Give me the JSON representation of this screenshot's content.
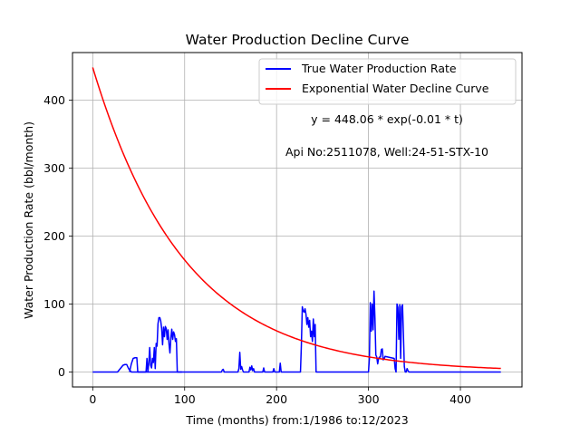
{
  "chart_data": {
    "type": "line",
    "title": "Water Production Decline Curve",
    "xlabel": "Time (months) from:1/1986 to:12/2023",
    "ylabel": "Water Production Rate (bbl/month)",
    "xlim": [
      -22,
      467
    ],
    "ylim": [
      -22,
      470
    ],
    "xticks": [
      0,
      100,
      200,
      300,
      400
    ],
    "yticks": [
      0,
      100,
      200,
      300,
      400
    ],
    "grid": true,
    "legend_position": "top-right",
    "annotations": {
      "equation": "y = 448.06 * exp(-0.01 * t)",
      "well_info": "Api No:2511078, Well:24-51-STX-10"
    },
    "series": [
      {
        "name": "True Water Production Rate",
        "color": "#0000ff",
        "x": [
          0,
          27,
          30,
          33,
          35,
          37,
          39,
          42,
          44,
          46,
          48,
          50,
          52,
          54,
          56,
          58,
          60,
          61,
          62,
          63,
          64,
          65,
          66,
          67,
          68,
          69,
          70,
          71,
          72,
          73,
          74,
          75,
          76,
          77,
          78,
          79,
          80,
          81,
          82,
          83,
          84,
          85,
          86,
          87,
          88,
          89,
          90,
          91,
          92,
          93,
          94,
          95,
          96,
          97,
          98,
          140,
          141,
          142,
          143,
          158,
          159,
          160,
          161,
          162,
          163,
          164,
          170,
          171,
          172,
          173,
          174,
          175,
          176,
          185,
          186,
          187,
          196,
          197,
          198,
          203,
          204,
          205,
          226,
          227,
          228,
          229,
          230,
          231,
          232,
          233,
          234,
          235,
          236,
          237,
          238,
          239,
          240,
          241,
          242,
          243,
          244,
          245,
          246,
          300,
          301,
          302,
          303,
          304,
          305,
          306,
          307,
          308,
          309,
          310,
          311,
          312,
          313,
          314,
          315,
          316,
          317,
          318,
          328,
          329,
          330,
          331,
          332,
          333,
          334,
          335,
          336,
          337,
          338,
          339,
          340,
          341,
          342,
          343,
          344,
          345,
          444
        ],
        "values": [
          0,
          0,
          5,
          10,
          11,
          11,
          5,
          0,
          0,
          0,
          0,
          0,
          0,
          0,
          0,
          0,
          0,
          0,
          0,
          0,
          0,
          0,
          0,
          0,
          0,
          0,
          0,
          0,
          0,
          0,
          0,
          0,
          0,
          0,
          0,
          0,
          0,
          0,
          0,
          0,
          0,
          0,
          0,
          0,
          0,
          0,
          0,
          0,
          0,
          0,
          0,
          0,
          0,
          0,
          0,
          0,
          3,
          4,
          0,
          0,
          5,
          29,
          4,
          8,
          3,
          0,
          0,
          7,
          3,
          9,
          2,
          5,
          0,
          0,
          6,
          0,
          0,
          5,
          0,
          0,
          13,
          0,
          0,
          40,
          96,
          90,
          88,
          93,
          85,
          70,
          80,
          66,
          76,
          52,
          60,
          45,
          78,
          52,
          70,
          0,
          0,
          0,
          0,
          0,
          20,
          102,
          60,
          100,
          62,
          119,
          80,
          25,
          22,
          12,
          20,
          22,
          22,
          33,
          34,
          18,
          19,
          23,
          20,
          5,
          0,
          100,
          95,
          48,
          99,
          20,
          96,
          99,
          55,
          8,
          0,
          0,
          5,
          2,
          0,
          0,
          0
        ],
        "segment_2": {
          "x": [
            40,
            42,
            44,
            46,
            48,
            49,
            50,
            52,
            54,
            56,
            58,
            59,
            60,
            61,
            62,
            63,
            64,
            65,
            66,
            67,
            68,
            69,
            70,
            71,
            72,
            73,
            74,
            75,
            76,
            77,
            78,
            79,
            80,
            81,
            82,
            83,
            84,
            85,
            86,
            87,
            88,
            89,
            90,
            91,
            92,
            93,
            94,
            95,
            96,
            97
          ],
          "values": [
            0,
            12,
            20,
            21,
            21,
            0,
            0,
            0,
            0,
            0,
            0,
            20,
            0,
            13,
            36,
            10,
            6,
            20,
            14,
            36,
            5,
            42,
            38,
            71,
            80,
            80,
            75,
            64,
            40,
            66,
            52,
            67,
            64,
            48,
            62,
            41,
            28,
            50,
            63,
            48,
            59,
            55,
            45,
            49,
            0,
            0,
            0,
            0,
            0,
            0
          ]
        }
      },
      {
        "name": "Exponential Water Decline Curve",
        "color": "#ff0000",
        "equation": {
          "a": 448.06,
          "b": 0.01
        },
        "x_range": [
          0,
          444
        ]
      }
    ]
  }
}
